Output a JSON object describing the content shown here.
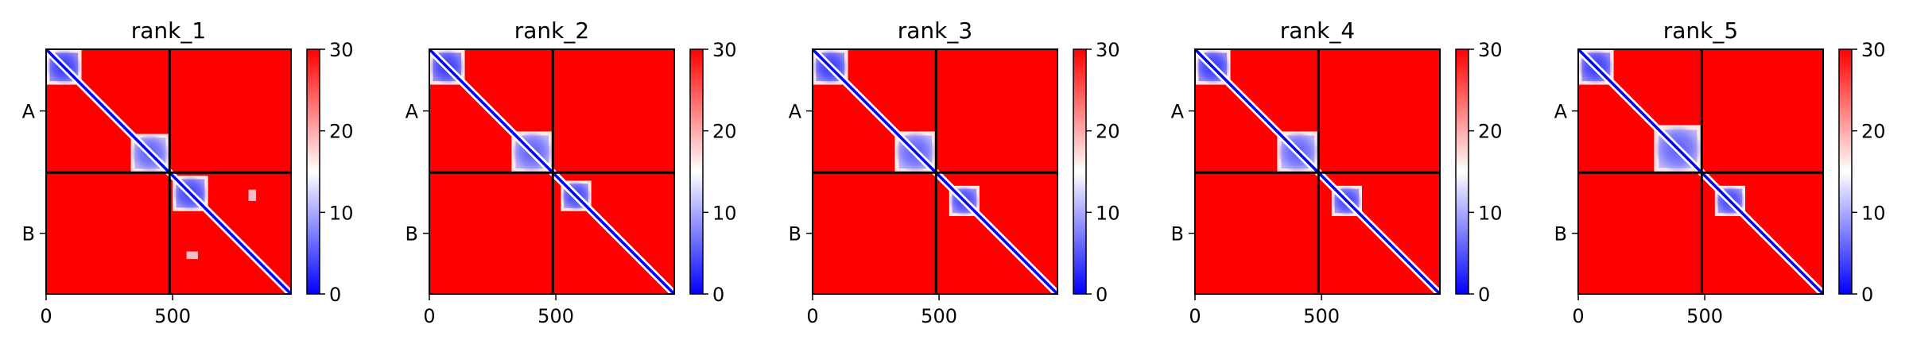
{
  "chart_data": [
    {
      "type": "heatmap",
      "title": "rank_1",
      "x_ticks": [
        0,
        500
      ],
      "xlim": [
        0,
        968
      ],
      "chain_labels": [
        "A",
        "B"
      ],
      "chain_boundary": 488,
      "colorbar": {
        "ticks": [
          0,
          10,
          20,
          30
        ],
        "range": [
          0,
          30
        ],
        "colormap": [
          "#0000ff",
          "#ffffff",
          "#ff0000"
        ]
      },
      "blue_regions": [
        {
          "x": [
            0,
            140
          ],
          "y": [
            0,
            140
          ],
          "value": 4
        },
        {
          "x": [
            335,
            488
          ],
          "y": [
            335,
            488
          ],
          "value": 8
        },
        {
          "x": [
            500,
            640
          ],
          "y": [
            500,
            640
          ],
          "value": 5
        },
        {
          "x": [
            555,
            600
          ],
          "y": [
            800,
            830
          ],
          "value": 14
        }
      ]
    },
    {
      "type": "heatmap",
      "title": "rank_2",
      "x_ticks": [
        0,
        500
      ],
      "xlim": [
        0,
        968
      ],
      "chain_labels": [
        "A",
        "B"
      ],
      "chain_boundary": 488,
      "colorbar": {
        "ticks": [
          0,
          10,
          20,
          30
        ],
        "range": [
          0,
          30
        ],
        "colormap": [
          "#0000ff",
          "#ffffff",
          "#ff0000"
        ]
      },
      "blue_regions": [
        {
          "x": [
            0,
            140
          ],
          "y": [
            0,
            140
          ],
          "value": 4
        },
        {
          "x": [
            325,
            488
          ],
          "y": [
            325,
            488
          ],
          "value": 8
        },
        {
          "x": [
            520,
            640
          ],
          "y": [
            520,
            640
          ],
          "value": 5
        }
      ]
    },
    {
      "type": "heatmap",
      "title": "rank_3",
      "x_ticks": [
        0,
        500
      ],
      "xlim": [
        0,
        968
      ],
      "chain_labels": [
        "A",
        "B"
      ],
      "chain_boundary": 488,
      "colorbar": {
        "ticks": [
          0,
          10,
          20,
          30
        ],
        "range": [
          0,
          30
        ],
        "colormap": [
          "#0000ff",
          "#ffffff",
          "#ff0000"
        ]
      },
      "blue_regions": [
        {
          "x": [
            0,
            140
          ],
          "y": [
            0,
            140
          ],
          "value": 4
        },
        {
          "x": [
            325,
            488
          ],
          "y": [
            325,
            488
          ],
          "value": 8
        },
        {
          "x": [
            540,
            660
          ],
          "y": [
            540,
            660
          ],
          "value": 5
        }
      ]
    },
    {
      "type": "heatmap",
      "title": "rank_4",
      "x_ticks": [
        0,
        500
      ],
      "xlim": [
        0,
        968
      ],
      "chain_labels": [
        "A",
        "B"
      ],
      "chain_boundary": 488,
      "colorbar": {
        "ticks": [
          0,
          10,
          20,
          30
        ],
        "range": [
          0,
          30
        ],
        "colormap": [
          "#0000ff",
          "#ffffff",
          "#ff0000"
        ]
      },
      "blue_regions": [
        {
          "x": [
            0,
            140
          ],
          "y": [
            0,
            140
          ],
          "value": 4
        },
        {
          "x": [
            325,
            488
          ],
          "y": [
            325,
            488
          ],
          "value": 8
        },
        {
          "x": [
            540,
            660
          ],
          "y": [
            540,
            660
          ],
          "value": 5
        }
      ]
    },
    {
      "type": "heatmap",
      "title": "rank_5",
      "x_ticks": [
        0,
        500
      ],
      "xlim": [
        0,
        968
      ],
      "chain_labels": [
        "A",
        "B"
      ],
      "chain_boundary": 488,
      "colorbar": {
        "ticks": [
          0,
          10,
          20,
          30
        ],
        "range": [
          0,
          30
        ],
        "colormap": [
          "#0000ff",
          "#ffffff",
          "#ff0000"
        ]
      },
      "blue_regions": [
        {
          "x": [
            0,
            140
          ],
          "y": [
            0,
            140
          ],
          "value": 4
        },
        {
          "x": [
            300,
            488
          ],
          "y": [
            300,
            488
          ],
          "value": 8
        },
        {
          "x": [
            540,
            660
          ],
          "y": [
            540,
            660
          ],
          "value": 5
        }
      ]
    }
  ]
}
